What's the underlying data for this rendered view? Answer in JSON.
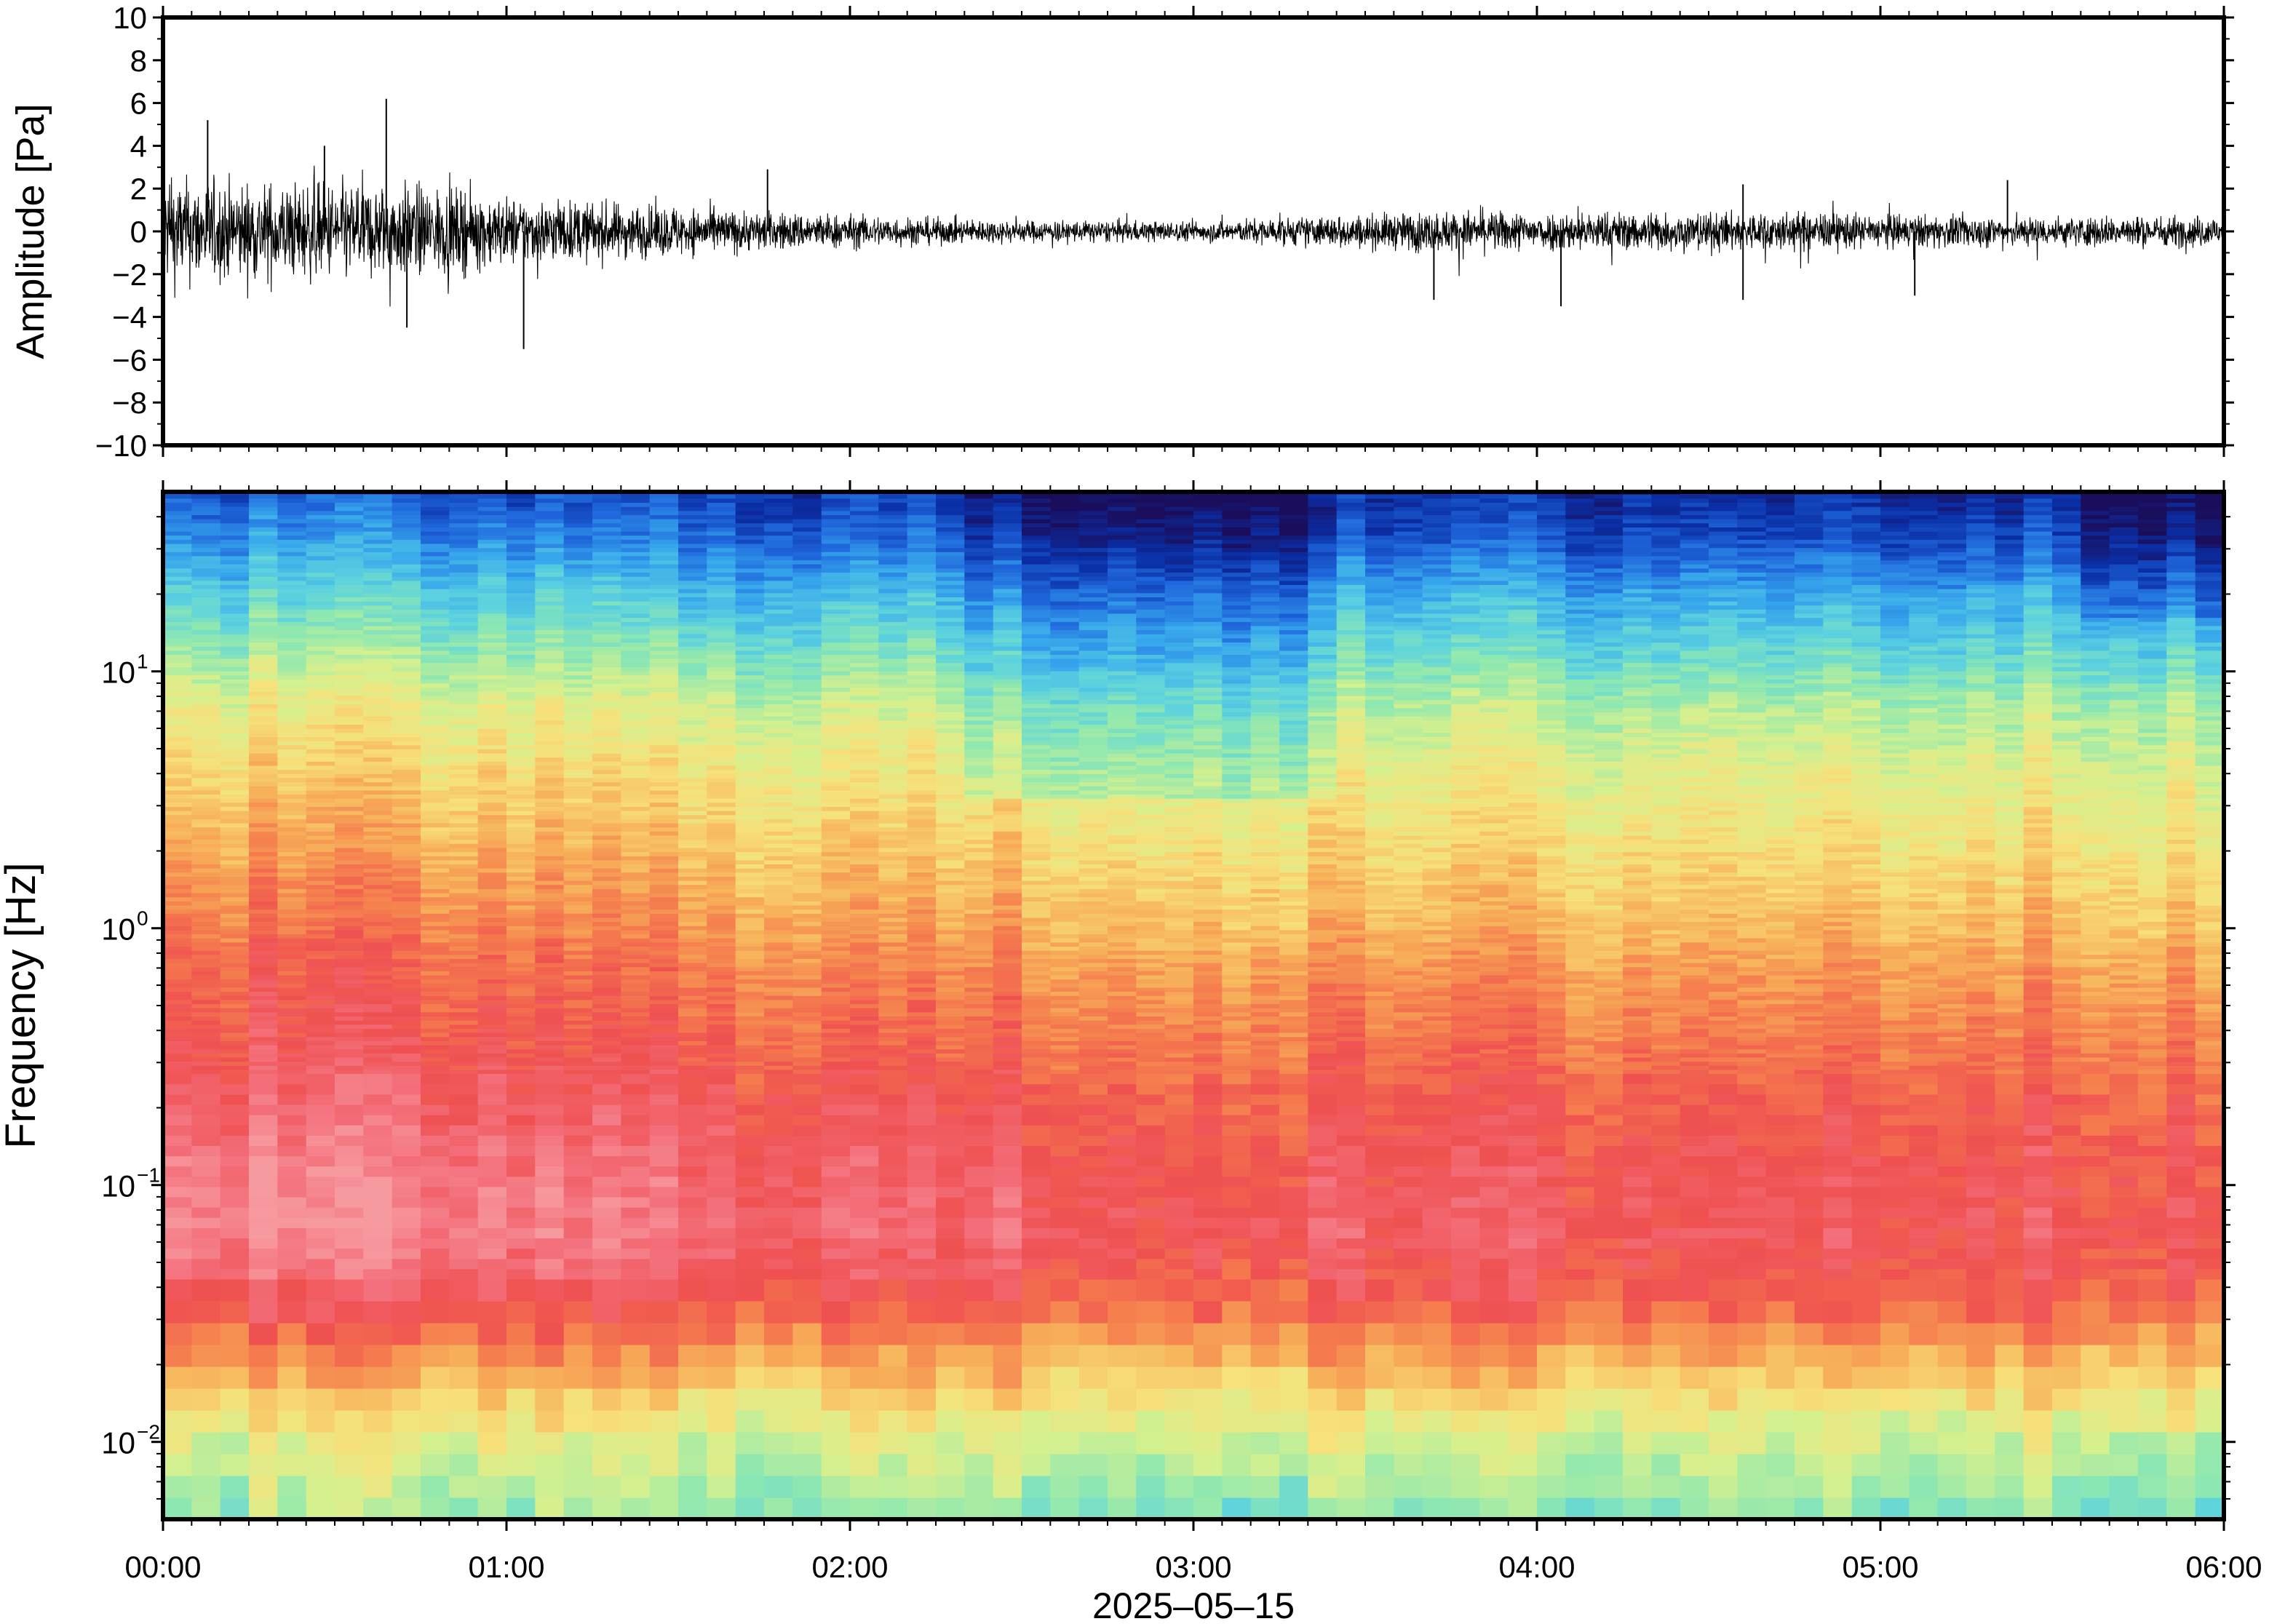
{
  "chart_data": [
    {
      "type": "line",
      "ylabel": "Amplitude [Pa]",
      "ylim": [
        -10,
        10
      ],
      "yticks": [
        10,
        8,
        6,
        4,
        2,
        0,
        -2,
        -4,
        -6,
        -8,
        -10
      ],
      "ytick_labels": [
        "10",
        "8",
        "6",
        "4",
        "2",
        "0",
        "−2",
        "−4",
        "−6",
        "−8",
        "−10"
      ],
      "xlim_hours": [
        0,
        6
      ],
      "envelope": {
        "t_hours": [
          0.0,
          0.25,
          0.5,
          0.75,
          1.0,
          1.25,
          1.5,
          1.75,
          2.0,
          2.25,
          2.5,
          2.75,
          3.0,
          3.25,
          3.5,
          3.75,
          4.0,
          4.25,
          4.5,
          4.75,
          5.0,
          5.25,
          5.5,
          5.75,
          6.0
        ],
        "amplitude": [
          2.2,
          2.0,
          2.0,
          1.9,
          1.4,
          1.2,
          1.0,
          0.8,
          0.7,
          0.55,
          0.45,
          0.45,
          0.4,
          0.55,
          0.7,
          0.85,
          0.8,
          0.8,
          0.8,
          0.8,
          0.7,
          0.65,
          0.6,
          0.65,
          0.65
        ]
      },
      "peaks": [
        {
          "t_hours": 0.65,
          "value": 6.2
        },
        {
          "t_hours": 0.13,
          "value": 5.2
        },
        {
          "t_hours": 1.05,
          "value": -5.5
        },
        {
          "t_hours": 0.71,
          "value": -4.5
        },
        {
          "t_hours": 0.47,
          "value": 4.0
        },
        {
          "t_hours": 1.76,
          "value": 2.9
        },
        {
          "t_hours": 4.07,
          "value": -3.5
        },
        {
          "t_hours": 3.7,
          "value": -3.2
        },
        {
          "t_hours": 4.6,
          "value": 2.2
        },
        {
          "t_hours": 4.6,
          "value": -3.2
        },
        {
          "t_hours": 5.1,
          "value": -3.0
        },
        {
          "t_hours": 5.37,
          "value": 2.4
        }
      ]
    },
    {
      "type": "heatmap",
      "ylabel": "Frequency [Hz]",
      "yscale": "log",
      "ylim": [
        0.005,
        50
      ],
      "yticks": [
        0.01,
        0.1,
        1,
        10
      ],
      "ytick_labels": [
        {
          "base": "10",
          "exp": "−2"
        },
        {
          "base": "10",
          "exp": "−1"
        },
        {
          "base": "10",
          "exp": "0"
        },
        {
          "base": "10",
          "exp": "1"
        }
      ],
      "x_tick_labels": [
        "00:00",
        "01:00",
        "02:00",
        "03:00",
        "04:00",
        "05:00",
        "06:00"
      ],
      "xlim_hours": [
        0,
        6
      ],
      "xlabel": "2025–05–15",
      "colormap": [
        "#1a0e5c",
        "#0a2fa6",
        "#1f66db",
        "#36a6ec",
        "#5cd2df",
        "#8fe8b0",
        "#d6f08e",
        "#f7e07a",
        "#f7b25a",
        "#f57e4e",
        "#ef5050",
        "#f36d78",
        "#f79aa0"
      ],
      "power_profile": {
        "log10_freq": [
          -2.3,
          -2.0,
          -1.7,
          -1.5,
          -1.2,
          -1.0,
          -0.7,
          -0.5,
          -0.2,
          0.0,
          0.3,
          0.6,
          0.85,
          1.05,
          1.3,
          1.55,
          1.7
        ],
        "level_early": [
          5.5,
          6.5,
          8.8,
          10.4,
          11.8,
          11.6,
          10.9,
          10.3,
          9.8,
          9.3,
          8.4,
          7.4,
          6.6,
          5.5,
          4.1,
          2.6,
          1.8
        ],
        "level_late": [
          5.0,
          6.2,
          8.2,
          9.7,
          10.4,
          10.2,
          9.8,
          9.3,
          8.6,
          7.9,
          7.1,
          6.4,
          5.6,
          4.4,
          3.1,
          1.4,
          0.9
        ]
      }
    }
  ]
}
